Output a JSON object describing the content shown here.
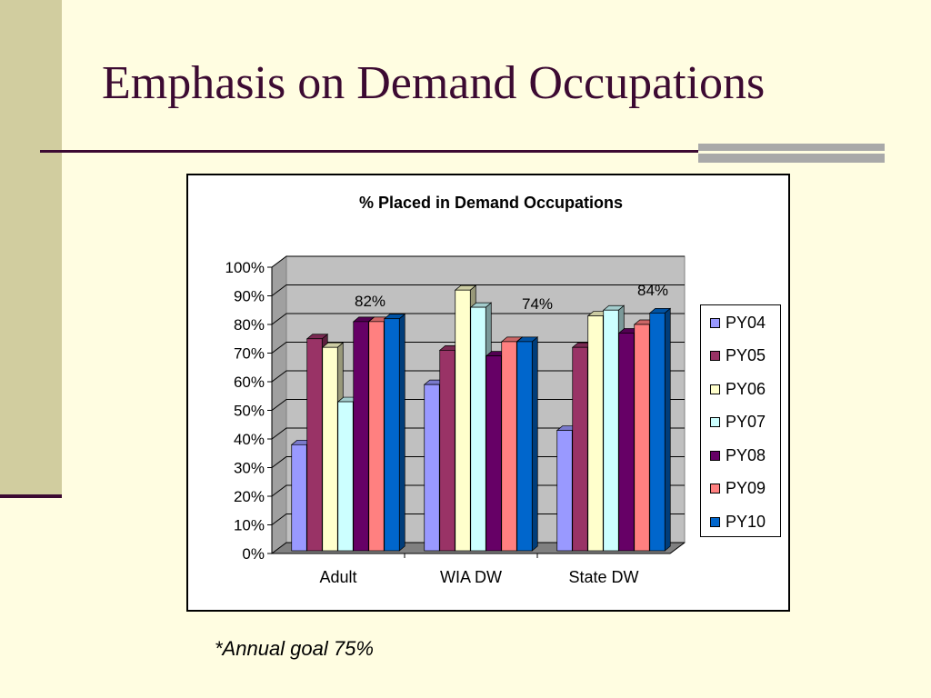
{
  "slide": {
    "title": "Emphasis on Demand Occupations",
    "footnote": "*Annual goal 75%"
  },
  "colors": {
    "background": "#FFFDE1",
    "title": "#3C0A32",
    "side_bar": "#D1CD9F"
  },
  "chart_data": {
    "type": "bar",
    "title": "% Placed in Demand Occupations",
    "categories": [
      "Adult",
      "WIA DW",
      "State DW"
    ],
    "series": [
      {
        "name": "PY04",
        "color": "#9999FF",
        "values": [
          38,
          59,
          43
        ]
      },
      {
        "name": "PY05",
        "color": "#993366",
        "values": [
          75,
          71,
          72
        ]
      },
      {
        "name": "PY06",
        "color": "#FFFFCC",
        "values": [
          72,
          92,
          83
        ]
      },
      {
        "name": "PY07",
        "color": "#CCFFFF",
        "values": [
          53,
          86,
          85
        ]
      },
      {
        "name": "PY08",
        "color": "#660066",
        "values": [
          81,
          69,
          77
        ]
      },
      {
        "name": "PY09",
        "color": "#FF8080",
        "values": [
          81,
          74,
          80
        ]
      },
      {
        "name": "PY10",
        "color": "#0066CC",
        "values": [
          82,
          74,
          84
        ]
      }
    ],
    "y_ticks": [
      "0%",
      "10%",
      "20%",
      "30%",
      "40%",
      "50%",
      "60%",
      "70%",
      "80%",
      "90%",
      "100%"
    ],
    "ylim": [
      0,
      100
    ],
    "grid": true,
    "legend_position": "right",
    "data_labels": [
      {
        "category": "Adult",
        "series": "PY10",
        "text": "82%"
      },
      {
        "category": "WIA DW",
        "series": "PY10",
        "text": "74%"
      },
      {
        "category": "State DW",
        "series": "PY10",
        "text": "84%"
      }
    ],
    "xlabel": "",
    "ylabel": ""
  }
}
